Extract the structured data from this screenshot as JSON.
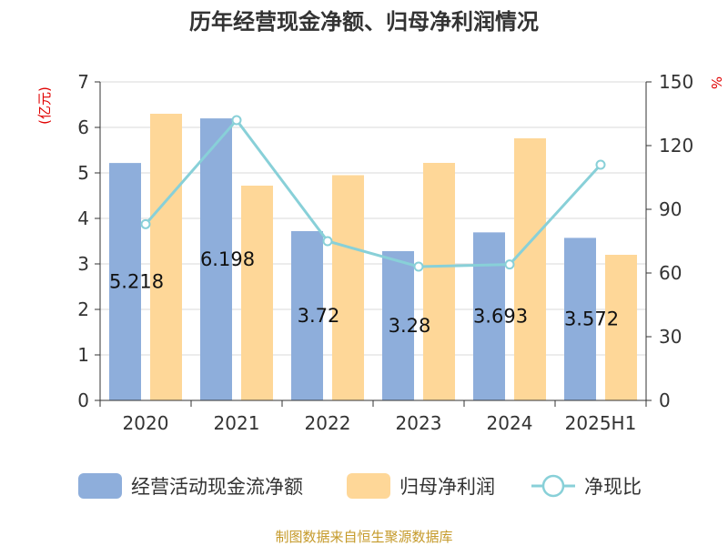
{
  "chart_data": {
    "type": "bar",
    "title": "历年经营现金净额、归母净利润情况",
    "left_unit": "(亿元)",
    "right_unit": "%",
    "categories": [
      "2020",
      "2021",
      "2022",
      "2023",
      "2024",
      "2025H1"
    ],
    "series": [
      {
        "name": "经营活动现金流净额",
        "type": "bar",
        "axis": "left",
        "color": "#8eaedb",
        "values": [
          5.218,
          6.198,
          3.72,
          3.28,
          3.693,
          3.572
        ],
        "labels": [
          "5.218",
          "6.198",
          "3.72",
          "3.28",
          "3.693",
          "3.572"
        ]
      },
      {
        "name": "归母净利润",
        "type": "bar",
        "axis": "left",
        "color": "#fed798",
        "values": [
          6.3,
          4.72,
          4.95,
          5.22,
          5.76,
          3.2
        ]
      },
      {
        "name": "净现比",
        "type": "line",
        "axis": "right",
        "color": "#88d0d8",
        "values": [
          83,
          132,
          75,
          63,
          64,
          111
        ]
      }
    ],
    "left_axis": {
      "min": 0,
      "max": 7,
      "ticks": [
        "0",
        "1",
        "2",
        "3",
        "4",
        "5",
        "6",
        "7"
      ]
    },
    "right_axis": {
      "min": 0,
      "max": 150,
      "ticks": [
        "0",
        "30",
        "60",
        "90",
        "120",
        "150"
      ]
    },
    "grid": true,
    "legend_position": "bottom"
  },
  "source": "制图数据来自恒生聚源数据库"
}
